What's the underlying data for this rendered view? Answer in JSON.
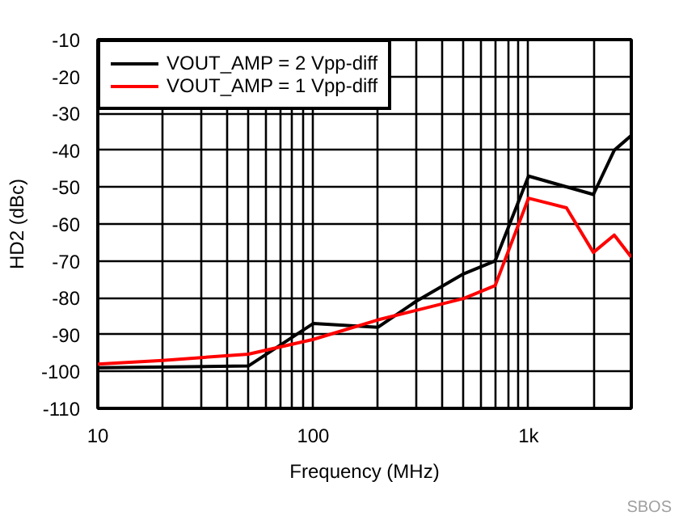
{
  "chart_data": {
    "type": "line",
    "xlabel": "Frequency (MHz)",
    "ylabel": "HD2 (dBc)",
    "log": "x",
    "xlim": [
      10,
      3000
    ],
    "ylim": [
      -110,
      -10
    ],
    "xticks": [
      10,
      {
        "value": 20,
        "label": null
      },
      {
        "value": 30,
        "label": null
      },
      {
        "value": 40,
        "label": null
      },
      {
        "value": 50,
        "label": null
      },
      {
        "value": 60,
        "label": null
      },
      {
        "value": 70,
        "label": null
      },
      {
        "value": 80,
        "label": null
      },
      {
        "value": 90,
        "label": null
      },
      100,
      {
        "value": 200,
        "label": null
      },
      {
        "value": 300,
        "label": null
      },
      {
        "value": 400,
        "label": null
      },
      {
        "value": 500,
        "label": null
      },
      {
        "value": 600,
        "label": null
      },
      {
        "value": 700,
        "label": null
      },
      {
        "value": 800,
        "label": null
      },
      {
        "value": 900,
        "label": null
      },
      {
        "value": 1000,
        "label": "1k"
      },
      {
        "value": 2000,
        "label": null
      }
    ],
    "yticks": [
      -110,
      -100,
      -90,
      -80,
      -70,
      -60,
      -50,
      -40,
      -30,
      -20,
      -10
    ],
    "grid": true,
    "legend": "top left",
    "line_style": "solid",
    "marker": "none",
    "series": [
      {
        "name": "VOUT_AMP = 2 Vpp-diff",
        "color": "#000000",
        "x": [
          10,
          50,
          100,
          200,
          300,
          500,
          700,
          1000,
          2000,
          2500,
          3000
        ],
        "values": [
          -99,
          -98.5,
          -87,
          -88,
          -81,
          -73.5,
          -70,
          -47,
          -52,
          -40,
          -36
        ]
      },
      {
        "name": "VOUT_AMP = 1 Vpp-diff",
        "color": "#ff0000",
        "x": [
          10,
          20,
          50,
          100,
          200,
          500,
          700,
          1000,
          1500,
          2000,
          2500,
          3000
        ],
        "values": [
          -98,
          -97,
          -95.3,
          -91.3,
          -86,
          -80.2,
          -76.7,
          -53,
          -55.6,
          -67.7,
          -63,
          -69
        ]
      }
    ],
    "annotations": [
      "SBOS"
    ]
  }
}
